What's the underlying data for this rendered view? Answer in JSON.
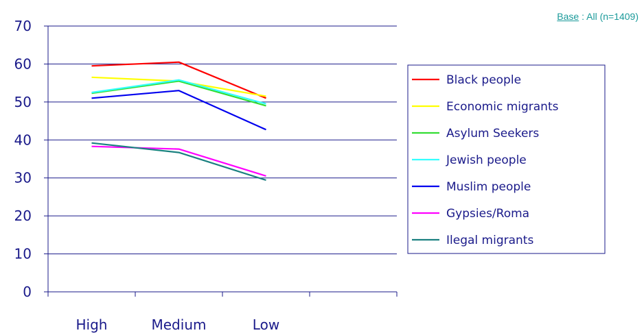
{
  "base_note": {
    "label": "Base",
    "text": " : All (n=1409)"
  },
  "chart_data": {
    "type": "line",
    "categories": [
      "High",
      "Medium",
      "Low"
    ],
    "ylim": [
      0,
      70
    ],
    "yticks": [
      0,
      10,
      20,
      30,
      40,
      50,
      60,
      70
    ],
    "grid": true,
    "legend_position": "right",
    "series": [
      {
        "name": "Black people",
        "color": "#ff0000",
        "values": [
          59.5,
          60.5,
          51
        ]
      },
      {
        "name": "Economic migrants",
        "color": "#ffff00",
        "values": [
          56.5,
          55.5,
          51.5
        ]
      },
      {
        "name": "Asylum Seekers",
        "color": "#33dd33",
        "values": [
          52.3,
          55.5,
          49
        ]
      },
      {
        "name": "Jewish people",
        "color": "#33ffff",
        "values": [
          52.5,
          55.8,
          49.5
        ]
      },
      {
        "name": "Muslim people",
        "color": "#0000ee",
        "values": [
          51,
          53,
          42.7
        ]
      },
      {
        "name": "Gypsies/Roma",
        "color": "#ff00ff",
        "values": [
          38.3,
          37.6,
          30.5
        ]
      },
      {
        "name": "Ilegal migrants",
        "color": "#1a8080",
        "values": [
          39.2,
          36.7,
          29.4
        ]
      }
    ]
  }
}
